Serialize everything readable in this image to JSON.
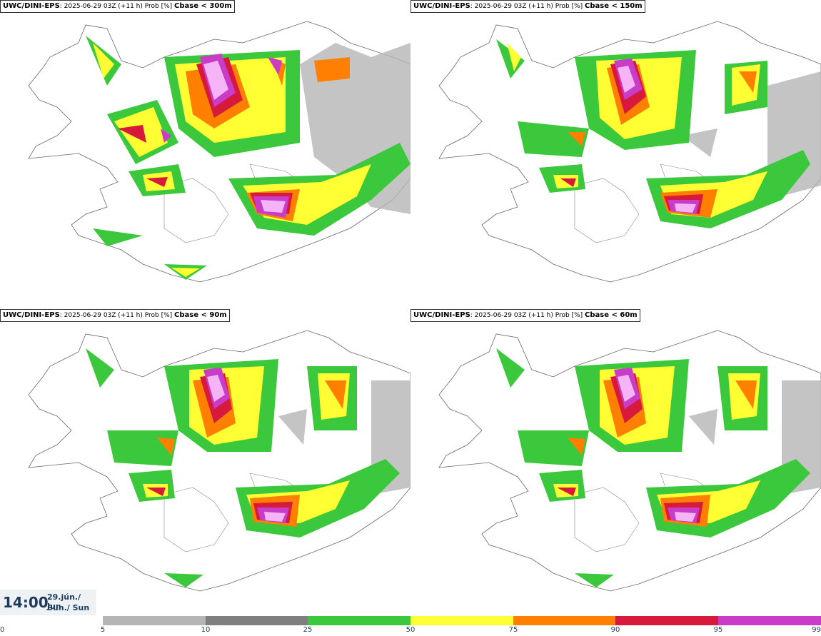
{
  "panels": [
    {
      "model": "UWC/DINI-EPS",
      "info": ": 2025-06-29 03Z (+11 h) Prob [%]",
      "param": "Cbase < 300m"
    },
    {
      "model": "UWC/DINI-EPS",
      "info": ": 2025-06-29 03Z (+11 h) Prob [%]",
      "param": "Cbase < 150m"
    },
    {
      "model": "UWC/DINI-EPS",
      "info": ": 2025-06-29 03Z (+11 h) Prob [%]",
      "param": "Cbase < 90m"
    },
    {
      "model": "UWC/DINI-EPS",
      "info": ": 2025-06-29 03Z (+11 h) Prob [%]",
      "param": "Cbase < 60m"
    }
  ],
  "time": {
    "clock": "14:00",
    "date": "29.jún./ Jun",
    "day": "Sun./ Sun"
  },
  "legend": {
    "ticks": [
      "0",
      "5",
      "10",
      "25",
      "50",
      "75",
      "90",
      "95",
      "99"
    ],
    "colors": [
      "#ffffff",
      "#b5b5b5",
      "#7f7f7f",
      "#3cc83c",
      "#ffff33",
      "#ff7f00",
      "#d7193c",
      "#c83cc8",
      "#f5b4f5"
    ]
  }
}
